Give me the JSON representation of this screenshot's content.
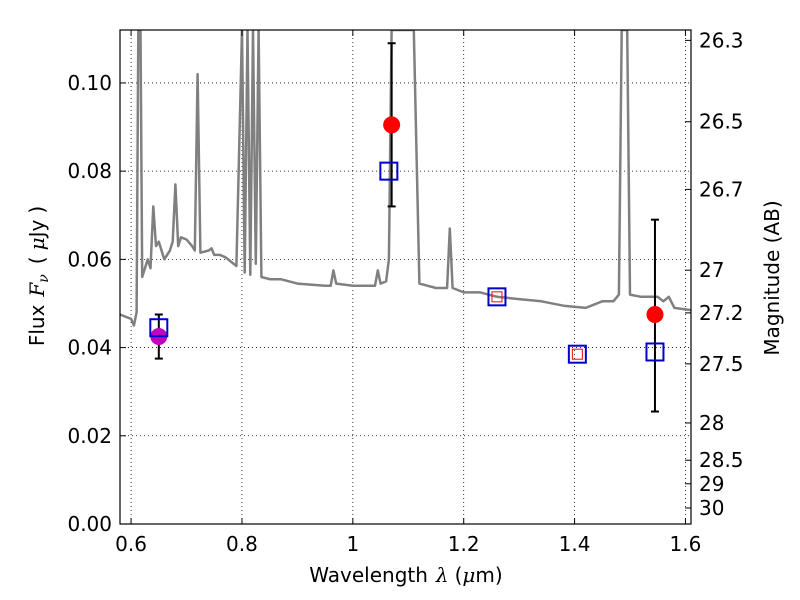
{
  "chart_data": {
    "type": "scatter",
    "title": "",
    "xlabel": "Wavelength",
    "xlabel_symbol": "λ",
    "xlabel_unit_open": "(",
    "xlabel_unit_mu": "μ",
    "xlabel_unit_rest": "m)",
    "ylabel": "Flux",
    "ylabel_symbol": "F",
    "ylabel_sub": "ν",
    "ylabel_unit_open": "(",
    "ylabel_unit_mu": "μ",
    "ylabel_unit_rest": "Jy",
    "ylabel_unit_close": ")",
    "y2label": "Magnitude (AB)",
    "xlim": [
      0.58,
      1.61
    ],
    "ylim": [
      0.0,
      0.112
    ],
    "grid": true,
    "x_ticks": [
      {
        "value": 0.6,
        "label": "0.6"
      },
      {
        "value": 0.8,
        "label": "0.8"
      },
      {
        "value": 1.0,
        "label": "1"
      },
      {
        "value": 1.2,
        "label": "1.2"
      },
      {
        "value": 1.4,
        "label": "1.4"
      },
      {
        "value": 1.6,
        "label": "1.6"
      }
    ],
    "y_ticks": [
      {
        "value": 0.0,
        "label": "0.00"
      },
      {
        "value": 0.02,
        "label": "0.02"
      },
      {
        "value": 0.04,
        "label": "0.04"
      },
      {
        "value": 0.06,
        "label": "0.06"
      },
      {
        "value": 0.08,
        "label": "0.08"
      },
      {
        "value": 0.1,
        "label": "0.10"
      }
    ],
    "y2_ticks": [
      {
        "value": 26.3,
        "label": "26.3"
      },
      {
        "value": 26.5,
        "label": "26.5"
      },
      {
        "value": 26.7,
        "label": "26.7"
      },
      {
        "value": 27.0,
        "label": "27"
      },
      {
        "value": 27.2,
        "label": "27.2"
      },
      {
        "value": 27.5,
        "label": "27.5"
      },
      {
        "value": 28.0,
        "label": "28"
      },
      {
        "value": 28.5,
        "label": "28.5"
      },
      {
        "value": 29.0,
        "label": "29"
      },
      {
        "value": 30.0,
        "label": "30"
      }
    ],
    "series": [
      {
        "type": "line",
        "color": "#808080",
        "points": [
          [
            0.58,
            0.0475
          ],
          [
            0.6,
            0.0465
          ],
          [
            0.605,
            0.045
          ],
          [
            0.61,
            0.048
          ],
          [
            0.613,
            0.112
          ],
          [
            0.617,
            0.112
          ],
          [
            0.62,
            0.056
          ],
          [
            0.63,
            0.06
          ],
          [
            0.635,
            0.058
          ],
          [
            0.64,
            0.072
          ],
          [
            0.645,
            0.063
          ],
          [
            0.65,
            0.064
          ],
          [
            0.66,
            0.06
          ],
          [
            0.67,
            0.062
          ],
          [
            0.675,
            0.064
          ],
          [
            0.68,
            0.077
          ],
          [
            0.685,
            0.063
          ],
          [
            0.69,
            0.065
          ],
          [
            0.7,
            0.0645
          ],
          [
            0.71,
            0.063
          ],
          [
            0.715,
            0.062
          ],
          [
            0.72,
            0.102
          ],
          [
            0.725,
            0.0615
          ],
          [
            0.74,
            0.062
          ],
          [
            0.745,
            0.0625
          ],
          [
            0.75,
            0.061
          ],
          [
            0.76,
            0.061
          ],
          [
            0.77,
            0.0605
          ],
          [
            0.78,
            0.0595
          ],
          [
            0.79,
            0.0585
          ],
          [
            0.8,
            0.112
          ],
          [
            0.805,
            0.057
          ],
          [
            0.81,
            0.112
          ],
          [
            0.815,
            0.0565
          ],
          [
            0.82,
            0.112
          ],
          [
            0.825,
            0.059
          ],
          [
            0.83,
            0.112
          ],
          [
            0.835,
            0.056
          ],
          [
            0.85,
            0.0555
          ],
          [
            0.87,
            0.0555
          ],
          [
            0.9,
            0.0545
          ],
          [
            0.95,
            0.054
          ],
          [
            0.96,
            0.054
          ],
          [
            0.965,
            0.0575
          ],
          [
            0.97,
            0.0545
          ],
          [
            1.0,
            0.054
          ],
          [
            1.04,
            0.054
          ],
          [
            1.045,
            0.0575
          ],
          [
            1.05,
            0.0545
          ],
          [
            1.06,
            0.055
          ],
          [
            1.065,
            0.06
          ],
          [
            1.07,
            0.112
          ],
          [
            1.09,
            0.112
          ],
          [
            1.11,
            0.112
          ],
          [
            1.12,
            0.0545
          ],
          [
            1.15,
            0.0535
          ],
          [
            1.17,
            0.0535
          ],
          [
            1.175,
            0.067
          ],
          [
            1.18,
            0.0535
          ],
          [
            1.2,
            0.0525
          ],
          [
            1.23,
            0.0525
          ],
          [
            1.26,
            0.0515
          ],
          [
            1.3,
            0.051
          ],
          [
            1.34,
            0.0505
          ],
          [
            1.38,
            0.0495
          ],
          [
            1.42,
            0.049
          ],
          [
            1.45,
            0.0505
          ],
          [
            1.47,
            0.0505
          ],
          [
            1.48,
            0.052
          ],
          [
            1.485,
            0.112
          ],
          [
            1.495,
            0.112
          ],
          [
            1.5,
            0.052
          ],
          [
            1.52,
            0.0515
          ],
          [
            1.55,
            0.0515
          ],
          [
            1.56,
            0.0505
          ],
          [
            1.57,
            0.0515
          ],
          [
            1.58,
            0.049
          ],
          [
            1.61,
            0.0485
          ]
        ]
      },
      {
        "type": "points",
        "marker": "circle",
        "color": "#ff0000",
        "points": [
          {
            "x": 1.07,
            "y": 0.0905,
            "ylow": 0.072,
            "yhigh": 0.109
          },
          {
            "x": 1.545,
            "y": 0.0475,
            "ylow": 0.0255,
            "yhigh": 0.069
          }
        ]
      },
      {
        "type": "points",
        "marker": "circle",
        "color": "#bf00bf",
        "points": [
          {
            "x": 0.65,
            "y": 0.0425,
            "ylow": 0.0375,
            "yhigh": 0.0475
          }
        ]
      },
      {
        "type": "points",
        "marker": "square",
        "color": "#0000cc",
        "points": [
          {
            "x": 0.65,
            "y": 0.0445
          },
          {
            "x": 1.065,
            "y": 0.08
          },
          {
            "x": 1.26,
            "y": 0.0515
          },
          {
            "x": 1.405,
            "y": 0.0385
          },
          {
            "x": 1.545,
            "y": 0.039
          }
        ]
      },
      {
        "type": "points",
        "marker": "small-square",
        "color": "#ff0000",
        "points": [
          {
            "x": 1.26,
            "y": 0.0515
          },
          {
            "x": 1.405,
            "y": 0.0385
          }
        ]
      }
    ]
  }
}
